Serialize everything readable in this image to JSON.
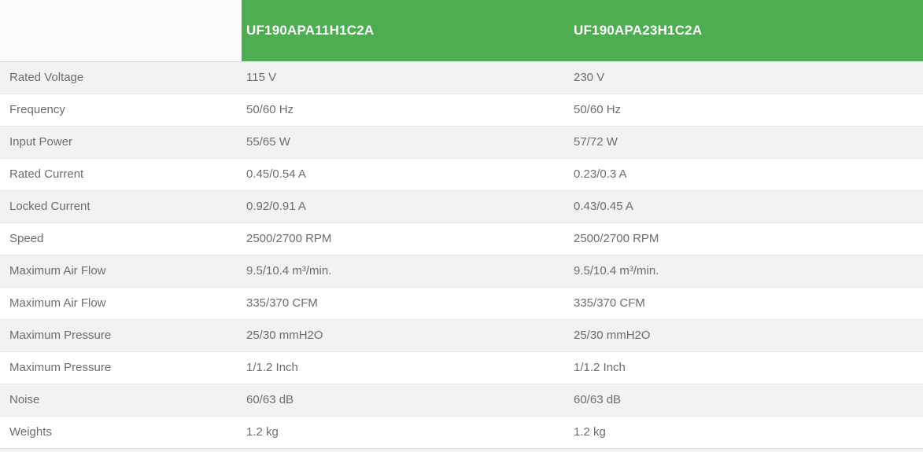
{
  "colors": {
    "header_green": "#4cae50",
    "header_left_bg": "#fbfbfb",
    "header_text": "#ffffff",
    "row_alt_bg": "#f2f2f2",
    "row_bg": "#ffffff",
    "body_text": "#6d6d6d",
    "row_border": "#e7e7e7",
    "header_border": "#d8d8d8"
  },
  "table": {
    "corner_label": "",
    "columns": [
      "UF190APA11H1C2A",
      "UF190APA23H1C2A"
    ],
    "rows": [
      {
        "label": "Rated Voltage",
        "values": [
          "115 V",
          "230 V"
        ]
      },
      {
        "label": "Frequency",
        "values": [
          "50/60 Hz",
          "50/60 Hz"
        ]
      },
      {
        "label": "Input Power",
        "values": [
          "55/65 W",
          "57/72 W"
        ]
      },
      {
        "label": "Rated Current",
        "values": [
          "0.45/0.54 A",
          "0.23/0.3 A"
        ]
      },
      {
        "label": "Locked Current",
        "values": [
          "0.92/0.91 A",
          "0.43/0.45 A"
        ]
      },
      {
        "label": "Speed",
        "values": [
          "2500/2700 RPM",
          "2500/2700 RPM"
        ]
      },
      {
        "label": "Maximum Air Flow",
        "values": [
          "9.5/10.4 m³/min.",
          "9.5/10.4 m³/min."
        ]
      },
      {
        "label": "Maximum Air Flow",
        "values": [
          "335/370 CFM",
          "335/370 CFM"
        ]
      },
      {
        "label": "Maximum Pressure",
        "values": [
          "25/30 mmH2O",
          "25/30 mmH2O"
        ]
      },
      {
        "label": "Maximum Pressure",
        "values": [
          "1/1.2 Inch",
          "1/1.2 Inch"
        ]
      },
      {
        "label": "Noise",
        "values": [
          "60/63 dB",
          "60/63 dB"
        ]
      },
      {
        "label": "Weights",
        "values": [
          "1.2 kg",
          "1.2 kg"
        ]
      }
    ]
  }
}
